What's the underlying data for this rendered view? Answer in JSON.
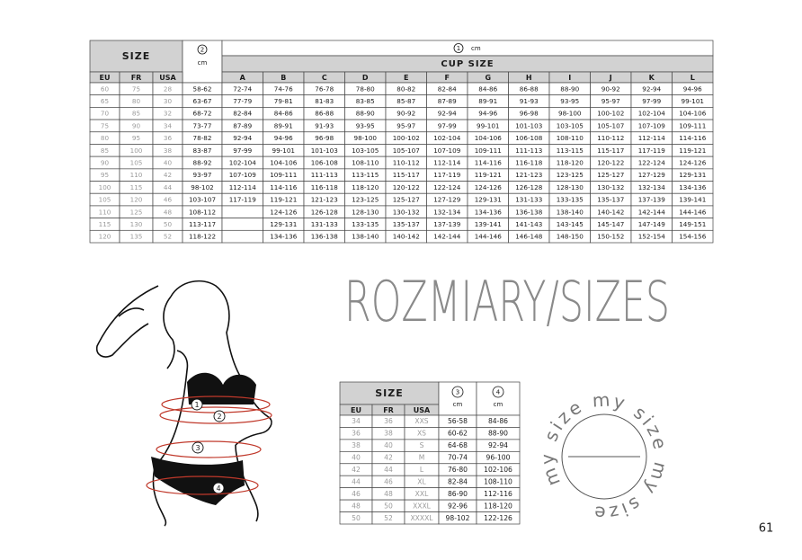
{
  "top_table": {
    "size_label": "SIZE",
    "size_columns": [
      "EU",
      "FR",
      "USA"
    ],
    "underbust": {
      "marker": "2",
      "unit": "cm"
    },
    "bust": {
      "marker": "1",
      "unit": "cm"
    },
    "cup_label": "CUP SIZE",
    "cups": [
      "A",
      "B",
      "C",
      "D",
      "E",
      "F",
      "G",
      "H",
      "I",
      "J",
      "K",
      "L"
    ],
    "rows": [
      [
        60,
        75,
        28,
        "58-62",
        "72-74",
        "74-76",
        "76-78",
        "78-80",
        "80-82",
        "82-84",
        "84-86",
        "86-88",
        "88-90",
        "90-92",
        "92-94",
        "94-96"
      ],
      [
        65,
        80,
        30,
        "63-67",
        "77-79",
        "79-81",
        "81-83",
        "83-85",
        "85-87",
        "87-89",
        "89-91",
        "91-93",
        "93-95",
        "95-97",
        "97-99",
        "99-101"
      ],
      [
        70,
        85,
        32,
        "68-72",
        "82-84",
        "84-86",
        "86-88",
        "88-90",
        "90-92",
        "92-94",
        "94-96",
        "96-98",
        "98-100",
        "100-102",
        "102-104",
        "104-106"
      ],
      [
        75,
        90,
        34,
        "73-77",
        "87-89",
        "89-91",
        "91-93",
        "93-95",
        "95-97",
        "97-99",
        "99-101",
        "101-103",
        "103-105",
        "105-107",
        "107-109",
        "109-111"
      ],
      [
        80,
        95,
        36,
        "78-82",
        "92-94",
        "94-96",
        "96-98",
        "98-100",
        "100-102",
        "102-104",
        "104-106",
        "106-108",
        "108-110",
        "110-112",
        "112-114",
        "114-116"
      ],
      [
        85,
        100,
        38,
        "83-87",
        "97-99",
        "99-101",
        "101-103",
        "103-105",
        "105-107",
        "107-109",
        "109-111",
        "111-113",
        "113-115",
        "115-117",
        "117-119",
        "119-121"
      ],
      [
        90,
        105,
        40,
        "88-92",
        "102-104",
        "104-106",
        "106-108",
        "108-110",
        "110-112",
        "112-114",
        "114-116",
        "116-118",
        "118-120",
        "120-122",
        "122-124",
        "124-126"
      ],
      [
        95,
        110,
        42,
        "93-97",
        "107-109",
        "109-111",
        "111-113",
        "113-115",
        "115-117",
        "117-119",
        "119-121",
        "121-123",
        "123-125",
        "125-127",
        "127-129",
        "129-131"
      ],
      [
        100,
        115,
        44,
        "98-102",
        "112-114",
        "114-116",
        "116-118",
        "118-120",
        "120-122",
        "122-124",
        "124-126",
        "126-128",
        "128-130",
        "130-132",
        "132-134",
        "134-136"
      ],
      [
        105,
        120,
        46,
        "103-107",
        "117-119",
        "119-121",
        "121-123",
        "123-125",
        "125-127",
        "127-129",
        "129-131",
        "131-133",
        "133-135",
        "135-137",
        "137-139",
        "139-141"
      ],
      [
        110,
        125,
        48,
        "108-112",
        null,
        "124-126",
        "126-128",
        "128-130",
        "130-132",
        "132-134",
        "134-136",
        "136-138",
        "138-140",
        "140-142",
        "142-144",
        "144-146"
      ],
      [
        115,
        130,
        50,
        "113-117",
        null,
        "129-131",
        "131-133",
        "133-135",
        "135-137",
        "137-139",
        "139-141",
        "141-143",
        "143-145",
        "145-147",
        "147-149",
        "149-151"
      ],
      [
        120,
        135,
        52,
        "118-122",
        null,
        "134-136",
        "136-138",
        "138-140",
        "140-142",
        "142-144",
        "144-146",
        "146-148",
        "148-150",
        "150-152",
        "152-154",
        "154-156"
      ]
    ]
  },
  "title": "ROZMIARY/SIZES",
  "bottom_table": {
    "size_label": "SIZE",
    "size_columns": [
      "EU",
      "FR",
      "USA"
    ],
    "columns": [
      {
        "marker": "3",
        "unit": "cm"
      },
      {
        "marker": "4",
        "unit": "cm"
      }
    ],
    "rows": [
      [
        34,
        36,
        "XXS",
        "56-58",
        "84-86"
      ],
      [
        36,
        38,
        "XS",
        "60-62",
        "88-90"
      ],
      [
        38,
        40,
        "S",
        "64-68",
        "92-94"
      ],
      [
        40,
        42,
        "M",
        "70-74",
        "96-100"
      ],
      [
        42,
        44,
        "L",
        "76-80",
        "102-106"
      ],
      [
        44,
        46,
        "XL",
        "82-84",
        "108-110"
      ],
      [
        46,
        48,
        "XXL",
        "86-90",
        "112-116"
      ],
      [
        48,
        50,
        "XXXL",
        "92-96",
        "118-120"
      ],
      [
        50,
        52,
        "XXXXL",
        "98-102",
        "122-126"
      ]
    ]
  },
  "figure": {
    "markers": [
      "1",
      "2",
      "3",
      "4"
    ]
  },
  "circle_text": "my size my size my size",
  "page_number": "61"
}
